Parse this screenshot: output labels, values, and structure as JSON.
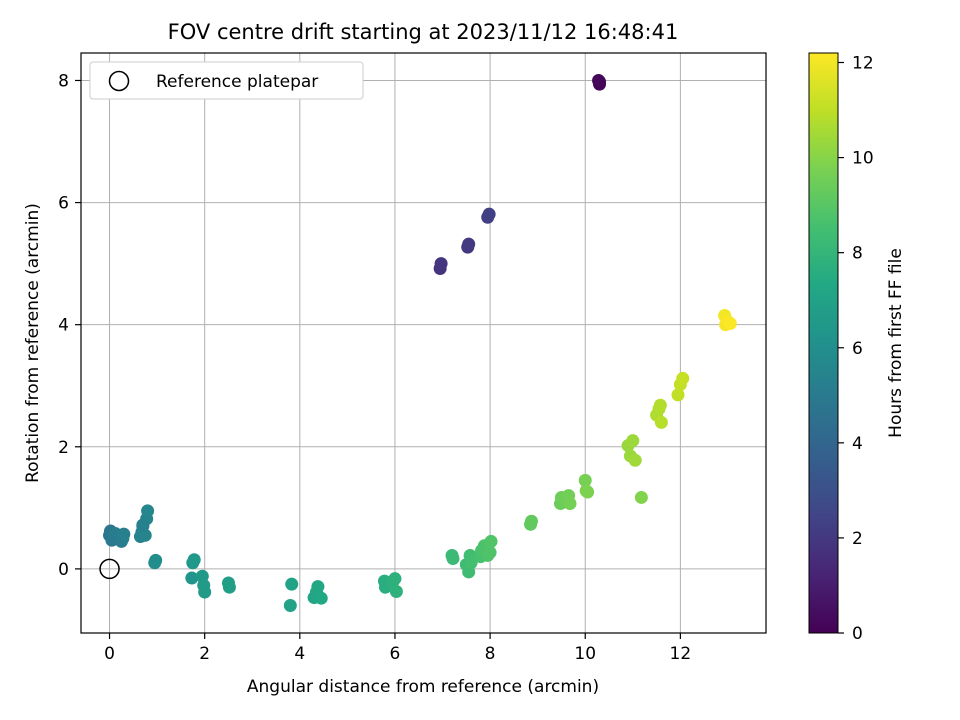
{
  "chart_data": {
    "type": "scatter",
    "title": "FOV centre drift starting at 2023/11/12 16:48:41",
    "xlabel": "Angular distance from reference (arcmin)",
    "ylabel": "Rotation from reference (arcmin)",
    "xlim": [
      -0.6,
      13.8
    ],
    "ylim": [
      -1.05,
      8.45
    ],
    "xticks": [
      "0",
      "2",
      "4",
      "6",
      "8",
      "10",
      "12"
    ],
    "yticks": [
      "0",
      "2",
      "4",
      "6",
      "8"
    ],
    "grid": true,
    "legend": {
      "placement": "top-left",
      "entries": [
        "Reference platepar"
      ]
    },
    "reference_point": {
      "name": "Reference platepar",
      "x": 0,
      "y": 0
    },
    "colorbar": {
      "label": "Hours from first FF file",
      "range": [
        0,
        12.2
      ],
      "ticks": [
        "0",
        "2",
        "4",
        "6",
        "8",
        "10",
        "12"
      ],
      "colormap": "viridis"
    },
    "series": [
      {
        "x": [
          10.3,
          10.3,
          10.28,
          6.95,
          6.97,
          7.53,
          7.55,
          7.95,
          7.98,
          0.0,
          0.02,
          0.05,
          0.08,
          0.12,
          0.25,
          0.28,
          0.3,
          0.65,
          0.68,
          0.7,
          0.75,
          0.78,
          0.8,
          0.7,
          0.95,
          0.97,
          1.73,
          1.75,
          1.78,
          1.95,
          1.98,
          2.0,
          2.5,
          2.52,
          3.8,
          3.83,
          4.3,
          4.35,
          4.38,
          4.45,
          5.78,
          5.8,
          5.95,
          6.0,
          6.03,
          7.2,
          7.22,
          7.5,
          7.55,
          7.58,
          7.6,
          7.8,
          7.82,
          7.88,
          7.95,
          8.0,
          8.02,
          8.85,
          8.87,
          9.48,
          9.5,
          9.65,
          9.68,
          10.0,
          10.02,
          10.05,
          10.9,
          10.95,
          11.0,
          11.05,
          11.18,
          11.5,
          11.55,
          11.58,
          11.6,
          11.95,
          12.0,
          12.05,
          12.93,
          12.95,
          13.0,
          13.05
        ],
        "y": [
          7.98,
          7.94,
          8.0,
          4.92,
          5.0,
          5.27,
          5.32,
          5.76,
          5.81,
          0.55,
          0.62,
          0.47,
          0.52,
          0.58,
          0.45,
          0.5,
          0.57,
          0.53,
          0.6,
          0.7,
          0.55,
          0.82,
          0.95,
          0.72,
          0.1,
          0.14,
          -0.15,
          0.1,
          0.15,
          -0.12,
          -0.27,
          -0.38,
          -0.23,
          -0.3,
          -0.6,
          -0.25,
          -0.47,
          -0.38,
          -0.29,
          -0.48,
          -0.2,
          -0.3,
          -0.22,
          -0.16,
          -0.37,
          0.22,
          0.17,
          0.07,
          -0.05,
          0.22,
          0.1,
          0.2,
          0.3,
          0.38,
          0.22,
          0.27,
          0.45,
          0.73,
          0.78,
          1.07,
          1.17,
          1.2,
          1.07,
          1.45,
          1.28,
          1.26,
          2.02,
          1.85,
          2.1,
          1.78,
          1.17,
          2.52,
          2.62,
          2.68,
          2.4,
          2.85,
          3.02,
          3.12,
          4.15,
          4.0,
          4.05,
          4.02
        ],
        "hours": [
          0.1,
          0.15,
          0.2,
          1.8,
          1.85,
          2.0,
          2.05,
          2.25,
          2.3,
          4.7,
          4.8,
          4.9,
          5.0,
          5.05,
          5.1,
          5.15,
          5.2,
          5.3,
          5.35,
          5.4,
          5.45,
          5.5,
          5.55,
          5.25,
          5.9,
          5.95,
          6.3,
          6.4,
          6.45,
          6.55,
          6.6,
          6.65,
          6.75,
          6.8,
          7.0,
          7.05,
          7.15,
          7.2,
          7.25,
          7.3,
          7.6,
          7.65,
          7.7,
          7.75,
          7.8,
          8.2,
          8.25,
          8.35,
          8.4,
          8.45,
          8.5,
          8.6,
          8.65,
          8.7,
          8.75,
          8.8,
          8.85,
          9.2,
          9.25,
          9.45,
          9.5,
          9.55,
          9.6,
          9.7,
          9.75,
          9.8,
          10.3,
          10.35,
          10.4,
          10.45,
          9.9,
          10.7,
          10.75,
          10.8,
          10.85,
          11.05,
          11.1,
          11.15,
          12.0,
          12.05,
          12.1,
          12.15
        ]
      }
    ]
  }
}
